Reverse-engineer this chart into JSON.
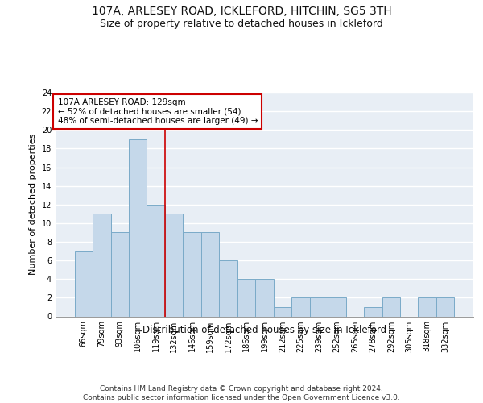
{
  "title1": "107A, ARLESEY ROAD, ICKLEFORD, HITCHIN, SG5 3TH",
  "title2": "Size of property relative to detached houses in Ickleford",
  "xlabel": "Distribution of detached houses by size in Ickleford",
  "ylabel": "Number of detached properties",
  "categories": [
    "66sqm",
    "79sqm",
    "93sqm",
    "106sqm",
    "119sqm",
    "132sqm",
    "146sqm",
    "159sqm",
    "172sqm",
    "186sqm",
    "199sqm",
    "212sqm",
    "225sqm",
    "239sqm",
    "252sqm",
    "265sqm",
    "278sqm",
    "292sqm",
    "305sqm",
    "318sqm",
    "332sqm"
  ],
  "values": [
    7,
    11,
    9,
    19,
    12,
    11,
    9,
    9,
    6,
    4,
    4,
    1,
    2,
    2,
    2,
    0,
    1,
    2,
    0,
    2,
    2
  ],
  "bar_color": "#c5d8ea",
  "bar_edgecolor": "#7aaac8",
  "bar_linewidth": 0.7,
  "vline_x": 4.5,
  "vline_color": "#cc0000",
  "vline_linewidth": 1.2,
  "annotation_text": "107A ARLESEY ROAD: 129sqm\n← 52% of detached houses are smaller (54)\n48% of semi-detached houses are larger (49) →",
  "annotation_box_color": "#ffffff",
  "annotation_box_edgecolor": "#cc0000",
  "ylim": [
    0,
    24
  ],
  "yticks": [
    0,
    2,
    4,
    6,
    8,
    10,
    12,
    14,
    16,
    18,
    20,
    22,
    24
  ],
  "background_color": "#e8eef5",
  "grid_color": "#ffffff",
  "footer_text": "Contains HM Land Registry data © Crown copyright and database right 2024.\nContains public sector information licensed under the Open Government Licence v3.0.",
  "title1_fontsize": 10,
  "title2_fontsize": 9,
  "xlabel_fontsize": 8.5,
  "ylabel_fontsize": 8,
  "tick_fontsize": 7,
  "annotation_fontsize": 7.5,
  "footer_fontsize": 6.5
}
